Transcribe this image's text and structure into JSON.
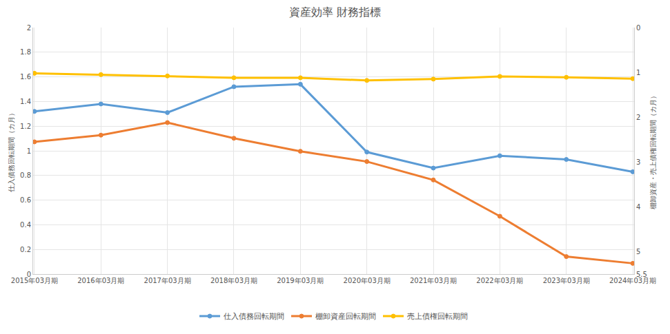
{
  "chart_data": {
    "type": "line",
    "title": "資産効率 財務指標",
    "ylabel": "仕入債務回転期間（カ月）",
    "y2label": "棚卸資産・売上債権回転期間（カ月）",
    "categories": [
      "2015年03月期",
      "2016年03月期",
      "2017年03月期",
      "2018年03月期",
      "2019年03月期",
      "2020年03月期",
      "2021年03月期",
      "2022年03月期",
      "2023年03月期",
      "2024年03月期"
    ],
    "series": [
      {
        "name": "仕入債務回転期間",
        "color": "#5b9bd5",
        "values": [
          1.32,
          1.38,
          1.31,
          1.52,
          1.54,
          0.99,
          0.86,
          0.96,
          0.93,
          0.83
        ]
      },
      {
        "name": "棚卸資産回転期間",
        "color": "#ed7d31",
        "axis": "y2",
        "values": [
          2.55,
          2.4,
          2.12,
          2.47,
          2.76,
          2.99,
          3.4,
          4.21,
          5.11,
          5.26
        ]
      },
      {
        "name": "売上債権回転期間",
        "color": "#ffc000",
        "axis": "y2",
        "values": [
          1.02,
          1.05,
          1.08,
          1.12,
          1.12,
          1.18,
          1.15,
          1.09,
          1.11,
          1.14
        ]
      }
    ],
    "ylim": [
      0,
      2
    ],
    "yticks": [
      0,
      0.2,
      0.4,
      0.6,
      0.8,
      1,
      1.2,
      1.4,
      1.6,
      1.8,
      2
    ],
    "y2lim": [
      5.5,
      0
    ],
    "y2ticks": [
      0,
      1,
      2,
      3,
      4,
      5,
      5.5
    ],
    "grid": true,
    "legend": "bottom",
    "marker": "circle"
  }
}
